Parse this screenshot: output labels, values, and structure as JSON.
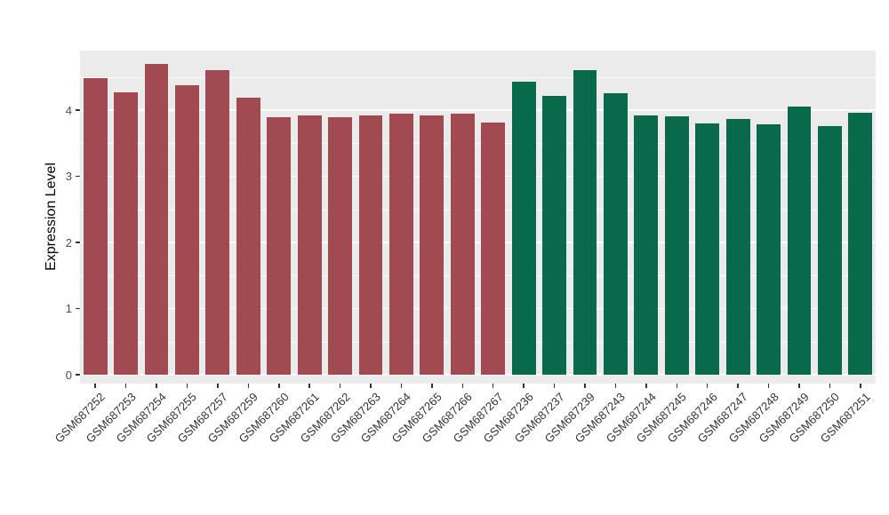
{
  "chart_data": {
    "type": "bar",
    "title": "",
    "xlabel": "",
    "ylabel": "Expression Level",
    "ylim": [
      0,
      4.9
    ],
    "yticks": [
      0,
      1,
      2,
      3,
      4
    ],
    "grid": "white major and minor horizontal gridlines on gray panel",
    "legend": "none",
    "panel_background": "#EBEBEB",
    "x_label_rotation_deg": 45,
    "groups": {
      "A": {
        "color": "#A04A51"
      },
      "B": {
        "color": "#086A4A"
      }
    },
    "bars": [
      {
        "label": "GSM687252",
        "value": 4.48,
        "group": "A"
      },
      {
        "label": "GSM687253",
        "value": 4.27,
        "group": "A"
      },
      {
        "label": "GSM687254",
        "value": 4.7,
        "group": "A"
      },
      {
        "label": "GSM687255",
        "value": 4.38,
        "group": "A"
      },
      {
        "label": "GSM687257",
        "value": 4.6,
        "group": "A"
      },
      {
        "label": "GSM687259",
        "value": 4.19,
        "group": "A"
      },
      {
        "label": "GSM687260",
        "value": 3.89,
        "group": "A"
      },
      {
        "label": "GSM687261",
        "value": 3.92,
        "group": "A"
      },
      {
        "label": "GSM687262",
        "value": 3.89,
        "group": "A"
      },
      {
        "label": "GSM687263",
        "value": 3.92,
        "group": "A"
      },
      {
        "label": "GSM687264",
        "value": 3.95,
        "group": "A"
      },
      {
        "label": "GSM687265",
        "value": 3.92,
        "group": "A"
      },
      {
        "label": "GSM687266",
        "value": 3.95,
        "group": "A"
      },
      {
        "label": "GSM687267",
        "value": 3.81,
        "group": "A"
      },
      {
        "label": "GSM687236",
        "value": 4.43,
        "group": "B"
      },
      {
        "label": "GSM687237",
        "value": 4.21,
        "group": "B"
      },
      {
        "label": "GSM687239",
        "value": 4.6,
        "group": "B"
      },
      {
        "label": "GSM687243",
        "value": 4.26,
        "group": "B"
      },
      {
        "label": "GSM687244",
        "value": 3.92,
        "group": "B"
      },
      {
        "label": "GSM687245",
        "value": 3.91,
        "group": "B"
      },
      {
        "label": "GSM687246",
        "value": 3.8,
        "group": "B"
      },
      {
        "label": "GSM687247",
        "value": 3.87,
        "group": "B"
      },
      {
        "label": "GSM687248",
        "value": 3.79,
        "group": "B"
      },
      {
        "label": "GSM687249",
        "value": 4.05,
        "group": "B"
      },
      {
        "label": "GSM687250",
        "value": 3.76,
        "group": "B"
      },
      {
        "label": "GSM687251",
        "value": 3.96,
        "group": "B"
      }
    ]
  }
}
